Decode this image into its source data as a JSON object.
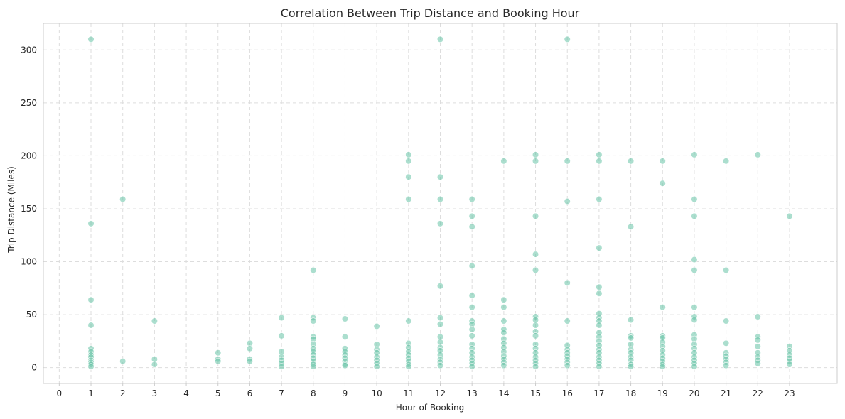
{
  "chart_data": {
    "type": "scatter",
    "title": "Correlation Between Trip Distance and Booking Hour",
    "xlabel": "Hour of Booking",
    "ylabel": "Trip Distance (Miles)",
    "xlim": [
      -0.5,
      24.5
    ],
    "ylim": [
      -15,
      325
    ],
    "x_ticks": [
      0,
      1,
      2,
      3,
      4,
      5,
      6,
      7,
      8,
      9,
      10,
      11,
      12,
      13,
      14,
      15,
      16,
      17,
      18,
      19,
      20,
      21,
      22,
      23
    ],
    "y_ticks": [
      0,
      50,
      100,
      150,
      200,
      250,
      300
    ],
    "grid": true,
    "color": "#66c2a5",
    "points": [
      [
        1,
        310
      ],
      [
        1,
        136
      ],
      [
        1,
        64
      ],
      [
        1,
        40
      ],
      [
        1,
        18
      ],
      [
        1,
        15
      ],
      [
        1,
        12
      ],
      [
        1,
        10
      ],
      [
        1,
        7
      ],
      [
        1,
        5
      ],
      [
        1,
        3
      ],
      [
        1,
        1
      ],
      [
        2,
        159
      ],
      [
        2,
        6
      ],
      [
        3,
        44
      ],
      [
        3,
        8
      ],
      [
        3,
        3
      ],
      [
        5,
        14
      ],
      [
        5,
        8
      ],
      [
        5,
        6
      ],
      [
        6,
        23
      ],
      [
        6,
        18
      ],
      [
        6,
        8
      ],
      [
        6,
        6
      ],
      [
        7,
        47
      ],
      [
        7,
        30
      ],
      [
        7,
        15
      ],
      [
        7,
        10
      ],
      [
        7,
        7
      ],
      [
        7,
        4
      ],
      [
        7,
        1
      ],
      [
        8,
        92
      ],
      [
        8,
        47
      ],
      [
        8,
        44
      ],
      [
        8,
        29
      ],
      [
        8,
        27
      ],
      [
        8,
        22
      ],
      [
        8,
        18
      ],
      [
        8,
        15
      ],
      [
        8,
        12
      ],
      [
        8,
        9
      ],
      [
        8,
        6
      ],
      [
        8,
        3
      ],
      [
        8,
        1
      ],
      [
        9,
        46
      ],
      [
        9,
        29
      ],
      [
        9,
        18
      ],
      [
        9,
        15
      ],
      [
        9,
        12
      ],
      [
        9,
        9
      ],
      [
        9,
        6
      ],
      [
        9,
        3
      ],
      [
        9,
        2
      ],
      [
        10,
        39
      ],
      [
        10,
        22
      ],
      [
        10,
        17
      ],
      [
        10,
        14
      ],
      [
        10,
        10
      ],
      [
        10,
        7
      ],
      [
        10,
        4
      ],
      [
        10,
        1
      ],
      [
        11,
        201
      ],
      [
        11,
        195
      ],
      [
        11,
        180
      ],
      [
        11,
        159
      ],
      [
        11,
        44
      ],
      [
        11,
        23
      ],
      [
        11,
        19
      ],
      [
        11,
        15
      ],
      [
        11,
        12
      ],
      [
        11,
        9
      ],
      [
        11,
        6
      ],
      [
        11,
        3
      ],
      [
        11,
        1
      ],
      [
        12,
        310
      ],
      [
        12,
        180
      ],
      [
        12,
        159
      ],
      [
        12,
        136
      ],
      [
        12,
        77
      ],
      [
        12,
        47
      ],
      [
        12,
        41
      ],
      [
        12,
        29
      ],
      [
        12,
        24
      ],
      [
        12,
        19
      ],
      [
        12,
        16
      ],
      [
        12,
        12
      ],
      [
        12,
        8
      ],
      [
        12,
        5
      ],
      [
        12,
        2
      ],
      [
        13,
        159
      ],
      [
        13,
        143
      ],
      [
        13,
        133
      ],
      [
        13,
        96
      ],
      [
        13,
        68
      ],
      [
        13,
        57
      ],
      [
        13,
        44
      ],
      [
        13,
        41
      ],
      [
        13,
        36
      ],
      [
        13,
        30
      ],
      [
        13,
        22
      ],
      [
        13,
        18
      ],
      [
        13,
        14
      ],
      [
        13,
        10
      ],
      [
        13,
        7
      ],
      [
        13,
        4
      ],
      [
        13,
        1
      ],
      [
        14,
        195
      ],
      [
        14,
        64
      ],
      [
        14,
        57
      ],
      [
        14,
        44
      ],
      [
        14,
        36
      ],
      [
        14,
        33
      ],
      [
        14,
        27
      ],
      [
        14,
        23
      ],
      [
        14,
        19
      ],
      [
        14,
        15
      ],
      [
        14,
        11
      ],
      [
        14,
        8
      ],
      [
        14,
        5
      ],
      [
        14,
        2
      ],
      [
        15,
        201
      ],
      [
        15,
        195
      ],
      [
        15,
        143
      ],
      [
        15,
        107
      ],
      [
        15,
        92
      ],
      [
        15,
        48
      ],
      [
        15,
        45
      ],
      [
        15,
        40
      ],
      [
        15,
        34
      ],
      [
        15,
        30
      ],
      [
        15,
        22
      ],
      [
        15,
        18
      ],
      [
        15,
        14
      ],
      [
        15,
        10
      ],
      [
        15,
        7
      ],
      [
        15,
        4
      ],
      [
        15,
        1
      ],
      [
        16,
        310
      ],
      [
        16,
        195
      ],
      [
        16,
        157
      ],
      [
        16,
        80
      ],
      [
        16,
        44
      ],
      [
        16,
        21
      ],
      [
        16,
        17
      ],
      [
        16,
        14
      ],
      [
        16,
        11
      ],
      [
        16,
        8
      ],
      [
        16,
        5
      ],
      [
        16,
        2
      ],
      [
        17,
        201
      ],
      [
        17,
        195
      ],
      [
        17,
        159
      ],
      [
        17,
        113
      ],
      [
        17,
        76
      ],
      [
        17,
        70
      ],
      [
        17,
        51
      ],
      [
        17,
        47
      ],
      [
        17,
        44
      ],
      [
        17,
        40
      ],
      [
        17,
        33
      ],
      [
        17,
        29
      ],
      [
        17,
        25
      ],
      [
        17,
        21
      ],
      [
        17,
        17
      ],
      [
        17,
        14
      ],
      [
        17,
        10
      ],
      [
        17,
        7
      ],
      [
        17,
        4
      ],
      [
        17,
        1
      ],
      [
        18,
        195
      ],
      [
        18,
        133
      ],
      [
        18,
        45
      ],
      [
        18,
        30
      ],
      [
        18,
        28
      ],
      [
        18,
        22
      ],
      [
        18,
        17
      ],
      [
        18,
        14
      ],
      [
        18,
        10
      ],
      [
        18,
        7
      ],
      [
        18,
        3
      ],
      [
        18,
        1
      ],
      [
        19,
        195
      ],
      [
        19,
        174
      ],
      [
        19,
        57
      ],
      [
        19,
        30
      ],
      [
        19,
        28
      ],
      [
        19,
        24
      ],
      [
        19,
        20
      ],
      [
        19,
        16
      ],
      [
        19,
        12
      ],
      [
        19,
        9
      ],
      [
        19,
        6
      ],
      [
        19,
        3
      ],
      [
        19,
        1
      ],
      [
        20,
        201
      ],
      [
        20,
        159
      ],
      [
        20,
        143
      ],
      [
        20,
        102
      ],
      [
        20,
        92
      ],
      [
        20,
        57
      ],
      [
        20,
        48
      ],
      [
        20,
        45
      ],
      [
        20,
        31
      ],
      [
        20,
        27
      ],
      [
        20,
        22
      ],
      [
        20,
        18
      ],
      [
        20,
        14
      ],
      [
        20,
        10
      ],
      [
        20,
        7
      ],
      [
        20,
        4
      ],
      [
        20,
        1
      ],
      [
        21,
        195
      ],
      [
        21,
        92
      ],
      [
        21,
        44
      ],
      [
        21,
        23
      ],
      [
        21,
        14
      ],
      [
        21,
        11
      ],
      [
        21,
        8
      ],
      [
        21,
        5
      ],
      [
        21,
        2
      ],
      [
        22,
        201
      ],
      [
        22,
        48
      ],
      [
        22,
        29
      ],
      [
        22,
        26
      ],
      [
        22,
        20
      ],
      [
        22,
        14
      ],
      [
        22,
        10
      ],
      [
        22,
        7
      ],
      [
        22,
        4
      ],
      [
        23,
        143
      ],
      [
        23,
        20
      ],
      [
        23,
        16
      ],
      [
        23,
        12
      ],
      [
        23,
        9
      ],
      [
        23,
        6
      ],
      [
        23,
        3
      ]
    ]
  }
}
